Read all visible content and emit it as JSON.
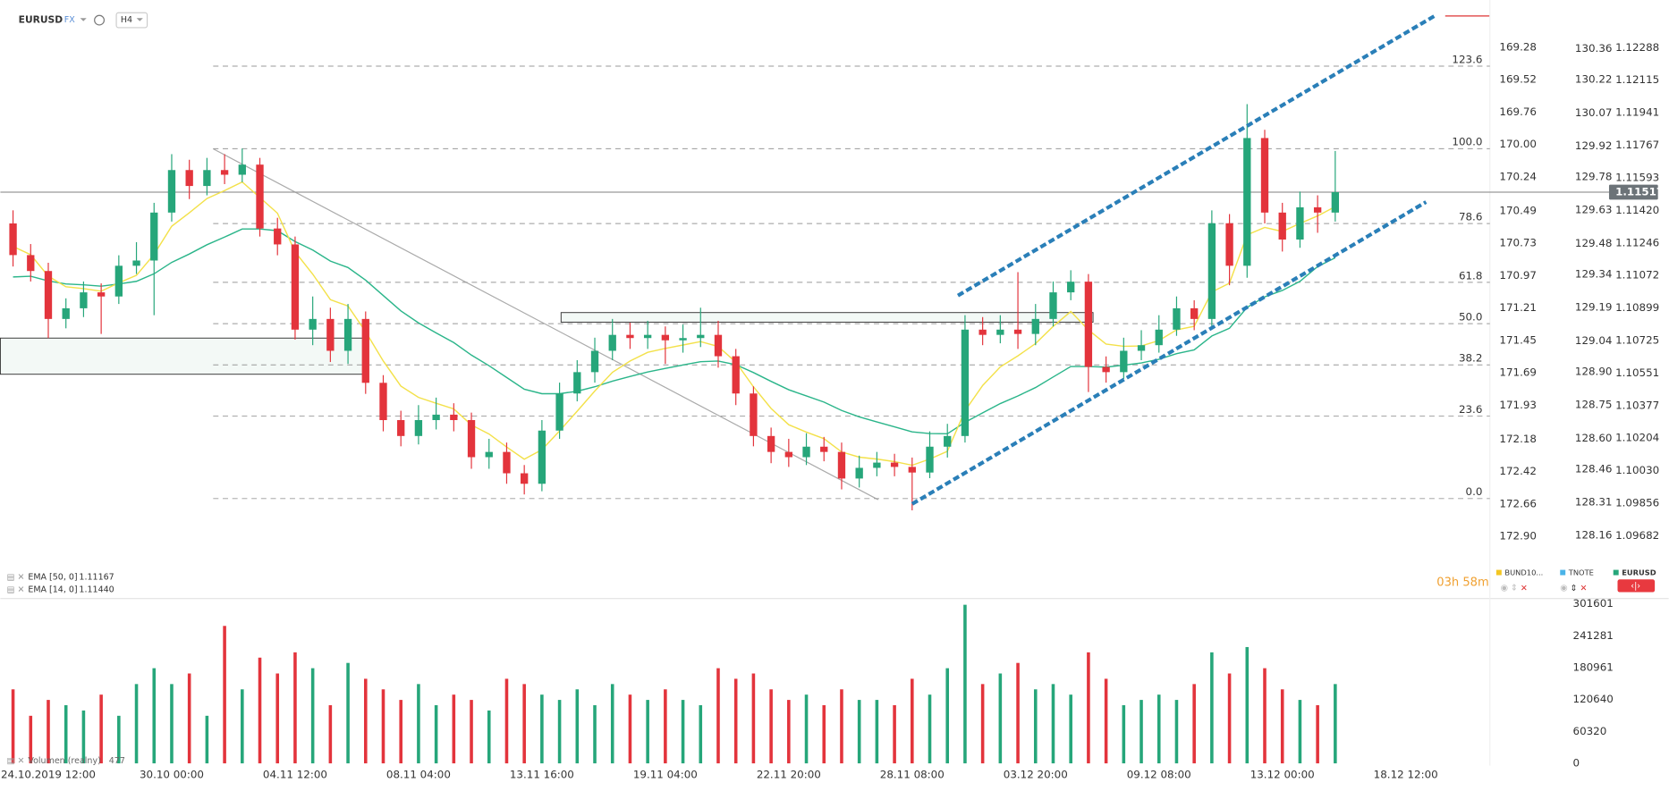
{
  "header": {
    "symbol": "EURUSD",
    "market": "FX",
    "timeframe": "H4"
  },
  "chart_data": {
    "type": "candlestick",
    "categories": [
      null,
      null,
      "24.10.2019 12:00",
      null,
      null,
      null,
      null,
      null,
      null,
      "30.10 00:00",
      null,
      null,
      null,
      null,
      null,
      null,
      "04.11 12:00",
      null,
      null,
      null,
      null,
      null,
      null,
      "08.11 04:00",
      null,
      null,
      null,
      null,
      null,
      null,
      "13.11 16:00",
      null,
      null,
      null,
      null,
      null,
      null,
      "19.11 04:00",
      null,
      null,
      null,
      null,
      null,
      null,
      "22.11 20:00",
      null,
      null,
      null,
      null,
      null,
      null,
      "28.11 08:00",
      null,
      null,
      null,
      null,
      null,
      null,
      "03.12 20:00",
      null,
      null,
      null,
      null,
      null,
      null,
      "09.12 08:00",
      null,
      null,
      null,
      null,
      null,
      null,
      "13.12 00:00",
      null,
      null,
      null,
      null,
      null,
      null,
      "18.12 12:00"
    ],
    "open": [
      1.1135,
      1.11181,
      1.11096,
      1.1084,
      1.10897,
      1.10982,
      1.1096,
      1.11124,
      1.11152,
      1.11408,
      1.11635,
      1.1155,
      1.11635,
      1.1161,
      1.11664,
      1.11323,
      1.11238,
      1.10783,
      1.1084,
      1.1067,
      1.1084,
      1.10499,
      1.103,
      1.10215,
      1.103,
      1.10329,
      1.103,
      1.10102,
      1.1013,
      1.10016,
      1.0996,
      1.10244,
      1.10442,
      1.10556,
      1.1067,
      1.10755,
      1.10738,
      1.10755,
      1.10726,
      1.10738,
      1.10755,
      1.10641,
      1.10442,
      1.10215,
      1.1013,
      1.10102,
      1.10158,
      1.1013,
      1.09988,
      1.10045,
      1.10073,
      1.1005,
      1.1002,
      1.10158,
      1.10215,
      1.10783,
      1.10755,
      1.10783,
      1.1076,
      1.1084,
      1.10982,
      1.11039,
      1.10584,
      1.10556,
      1.1067,
      1.107,
      1.10783,
      1.10897,
      1.1084,
      1.11351,
      1.11124,
      1.11806,
      1.11408,
      1.11264,
      1.11436,
      1.11408,
      null,
      null,
      null,
      null
    ],
    "high": [
      1.1142,
      1.1124,
      1.1114,
      1.1095,
      1.1104,
      1.1103,
      1.1118,
      1.1125,
      1.1146,
      1.1172,
      1.1169,
      1.117,
      1.1172,
      1.1175,
      1.117,
      1.1138,
      1.1128,
      1.1096,
      1.109,
      1.1092,
      1.1088,
      1.1054,
      1.1035,
      1.1038,
      1.1042,
      1.1039,
      1.1034,
      1.102,
      1.1018,
      1.1006,
      1.103,
      1.105,
      1.1062,
      1.1074,
      1.1084,
      1.1082,
      1.1083,
      1.108,
      1.1081,
      1.109,
      1.1083,
      1.1068,
      1.1048,
      1.1026,
      1.102,
      1.1023,
      1.1021,
      1.1018,
      1.1011,
      1.1013,
      1.1012,
      1.101,
      1.1024,
      1.1028,
      1.1086,
      1.1085,
      1.1086,
      1.1109,
      1.1092,
      1.1104,
      1.111,
      1.1108,
      1.1064,
      1.1074,
      1.1078,
      1.1086,
      1.1096,
      1.1094,
      1.1142,
      1.114,
      1.11987,
      1.1185,
      1.1146,
      1.1152,
      1.115,
      1.11737,
      null,
      null,
      null,
      null
    ],
    "low": [
      1.1112,
      1.1104,
      1.10738,
      1.1079,
      1.1085,
      1.1076,
      1.1092,
      1.1108,
      1.1086,
      1.1136,
      1.1148,
      1.115,
      1.1156,
      1.1157,
      1.1128,
      1.1118,
      1.1073,
      1.107,
      1.1061,
      1.106,
      1.1044,
      1.1024,
      1.1016,
      1.1017,
      1.1025,
      1.1024,
      1.1004,
      1.1004,
      1.0996,
      1.09903,
      1.0992,
      1.102,
      1.104,
      1.105,
      1.1062,
      1.1068,
      1.1068,
      1.106,
      1.1066,
      1.1069,
      1.1058,
      1.1038,
      1.1016,
      1.1007,
      1.1005,
      1.1006,
      1.1008,
      1.0993,
      1.0994,
      1.1,
      1.1,
      1.09818,
      1.0999,
      1.101,
      1.1018,
      1.107,
      1.1071,
      1.1068,
      1.107,
      1.108,
      1.1094,
      1.1045,
      1.105,
      1.1052,
      1.1062,
      1.1066,
      1.1075,
      1.1078,
      1.108,
      1.1102,
      1.1106,
      1.1135,
      1.112,
      1.1122,
      1.113,
      1.1136,
      null,
      null,
      null,
      null
    ],
    "close": [
      1.11181,
      1.11096,
      1.1084,
      1.10897,
      1.10982,
      1.1096,
      1.11124,
      1.11152,
      1.11408,
      1.11635,
      1.1155,
      1.11635,
      1.1161,
      1.11664,
      1.11323,
      1.11238,
      1.10783,
      1.1084,
      1.1067,
      1.1084,
      1.10499,
      1.103,
      1.10215,
      1.103,
      1.10329,
      1.103,
      1.10102,
      1.1013,
      1.10016,
      1.0996,
      1.10244,
      1.10442,
      1.10556,
      1.1067,
      1.10755,
      1.10738,
      1.10755,
      1.10726,
      1.10738,
      1.10755,
      1.10641,
      1.10442,
      1.10215,
      1.1013,
      1.10102,
      1.10158,
      1.1013,
      1.09988,
      1.10045,
      1.10073,
      1.1005,
      1.1002,
      1.10158,
      1.10215,
      1.10783,
      1.10755,
      1.10783,
      1.1076,
      1.1084,
      1.10982,
      1.11039,
      1.10584,
      1.10556,
      1.1067,
      1.107,
      1.10783,
      1.10897,
      1.1084,
      1.11351,
      1.11124,
      1.11806,
      1.11408,
      1.11264,
      1.11436,
      1.11408,
      1.11517,
      null,
      null,
      null,
      null
    ],
    "up_color": "#26a67a",
    "down_color": "#e3343c",
    "series": [
      {
        "name": "EMA [50, 0]",
        "last_label": "1.11167",
        "color": "#2bb58a",
        "values": [
          1.11064,
          1.11068,
          1.11043,
          1.11027,
          1.11022,
          1.11015,
          1.11027,
          1.11041,
          1.11081,
          1.11142,
          1.11187,
          1.11236,
          1.11277,
          1.1132,
          1.1132,
          1.11311,
          1.11253,
          1.11208,
          1.11149,
          1.11115,
          1.11047,
          1.10965,
          1.10883,
          1.10819,
          1.10765,
          1.10714,
          1.10647,
          1.1059,
          1.10527,
          1.10465,
          1.10441,
          1.10441,
          1.10454,
          1.10478,
          1.10508,
          1.10533,
          1.10557,
          1.10576,
          1.10594,
          1.10612,
          1.10615,
          1.10596,
          1.10554,
          1.10507,
          1.10462,
          1.10429,
          1.10396,
          1.10351,
          1.10317,
          1.1029,
          1.10264,
          1.10237,
          1.10228,
          1.10227,
          1.10288,
          1.10339,
          1.10388,
          1.10429,
          1.10474,
          1.1053,
          1.10586,
          1.10586,
          1.10583,
          1.10593,
          1.10605,
          1.10625,
          1.10655,
          1.10675,
          1.10749,
          1.1079,
          1.10902,
          1.10958,
          1.10992,
          1.11041,
          1.1112,
          1.11167,
          null,
          null,
          null,
          null
        ]
      },
      {
        "name": "EMA [14, 0]",
        "last_label": "1.11440",
        "color": "#f3e14a",
        "values": [
          1.11227,
          1.11183,
          1.11069,
          1.11012,
          1.11002,
          1.10988,
          1.11033,
          1.11073,
          1.11185,
          1.11335,
          1.11407,
          1.11483,
          1.11525,
          1.11571,
          1.11488,
          1.11405,
          1.11198,
          1.11079,
          1.10943,
          1.10909,
          1.10772,
          1.10615,
          1.10482,
          1.10421,
          1.1039,
          1.1036,
          1.10274,
          1.10226,
          1.10156,
          1.10091,
          1.10142,
          1.10242,
          1.10347,
          1.10455,
          1.10555,
          1.10616,
          1.10662,
          1.10683,
          1.10701,
          1.10719,
          1.10693,
          1.10609,
          1.10478,
          1.10362,
          1.10275,
          1.10236,
          1.10201,
          1.1013,
          1.10102,
          1.10092,
          1.10078,
          1.10059,
          1.10092,
          1.10133,
          1.1035,
          1.10485,
          1.10584,
          1.10643,
          1.10709,
          1.108,
          1.1088,
          1.10781,
          1.10706,
          1.10694,
          1.10696,
          1.10725,
          1.10782,
          1.10801,
          1.10984,
          1.11031,
          1.11289,
          1.11329,
          1.11307,
          1.1135,
          1.1139,
          1.1144,
          null,
          null,
          null,
          null
        ]
      }
    ],
    "ylim": [
      1.09506,
      1.12543
    ],
    "yticks": [
      1.12288,
      1.12115,
      1.11941,
      1.11767,
      1.11593,
      {
        "value": 1.1142,
        "label": "1.11420"
      },
      1.11246,
      1.11072,
      1.10899,
      1.10725,
      1.10551,
      1.10377,
      1.10204,
      {
        "value": 1.1003,
        "label": "1.10030"
      },
      1.09856,
      1.09682
    ],
    "y2lim": [
      128.01,
      130.58
    ],
    "y2ticks": [
      130.36,
      130.22,
      130.07,
      129.92,
      129.78,
      129.63,
      129.48,
      129.34,
      129.19,
      129.04,
      {
        "value": 128.9,
        "label": "128.90"
      },
      128.75,
      {
        "value": 128.6,
        "label": "128.60"
      },
      128.46,
      128.31,
      128.16
    ],
    "y3lim": [
      173.14,
      168.93
    ],
    "y3ticks": [
      169.28,
      169.52,
      169.76,
      {
        "value": 170,
        "label": "170.00"
      },
      170.24,
      170.49,
      170.73,
      170.97,
      171.21,
      171.45,
      171.69,
      171.93,
      172.18,
      172.42,
      172.66,
      {
        "value": 172.9,
        "label": "172.90"
      }
    ],
    "current_price": 1.11517,
    "fibonacci": {
      "low": 1.09881,
      "high": 1.11749,
      "levels": [
        123.6,
        {
          "value": 100,
          "label": "100.0"
        },
        78.6,
        61.8,
        {
          "value": 50,
          "label": "50.0"
        },
        38.2,
        23.6,
        {
          "value": 0,
          "label": "0.0"
        }
      ]
    },
    "volume": {
      "name": "Volumen (realny)",
      "legend_value": 477,
      "ylim": [
        0,
        307700
      ],
      "yticks": [
        301601,
        241281,
        180961,
        120640,
        60320,
        0
      ],
      "values": [
        140000,
        90000,
        120000,
        110000,
        100000,
        130000,
        90000,
        150000,
        180000,
        150000,
        170000,
        90000,
        260000,
        140000,
        200000,
        170000,
        210000,
        180000,
        110000,
        190000,
        160000,
        140000,
        120000,
        150000,
        110000,
        130000,
        120000,
        100000,
        160000,
        150000,
        130000,
        120000,
        140000,
        110000,
        150000,
        130000,
        120000,
        140000,
        120000,
        110000,
        180000,
        160000,
        170000,
        140000,
        120000,
        130000,
        110000,
        140000,
        120000,
        120000,
        110000,
        160000,
        130000,
        180000,
        300000,
        150000,
        170000,
        190000,
        140000,
        150000,
        130000,
        210000,
        160000,
        110000,
        120000,
        130000,
        120000,
        150000,
        210000,
        170000,
        220000,
        180000,
        140000,
        120000,
        110000,
        150000,
        null,
        null,
        null,
        null
      ]
    },
    "countdown": "03h 58m",
    "instruments": [
      "BUND10...",
      "TNOTE",
      "EURUSD"
    ]
  }
}
